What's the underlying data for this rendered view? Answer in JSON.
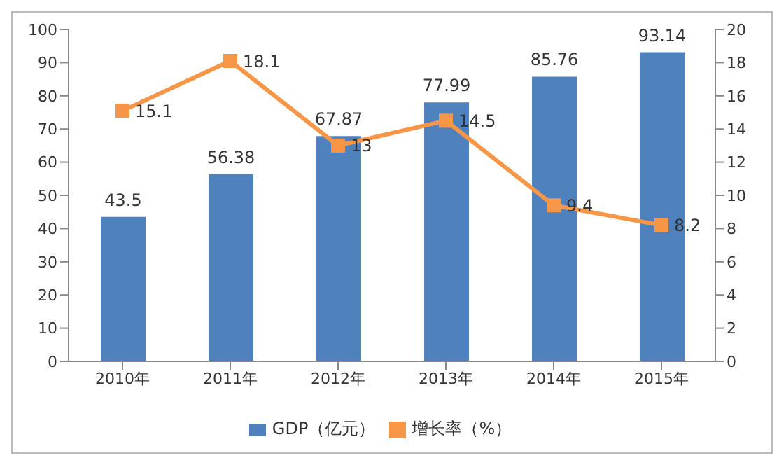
{
  "chart_data": {
    "type": "bar",
    "categories": [
      "2010年",
      "2011年",
      "2012年",
      "2013年",
      "2014年",
      "2015年"
    ],
    "series": [
      {
        "name": "GDP（亿元）",
        "color": "#4f81bd",
        "values": [
          43.5,
          56.38,
          67.87,
          77.99,
          85.76,
          93.14
        ]
      },
      {
        "name": "增长率（%）",
        "type": "line",
        "axis": "y2",
        "color": "#f79646",
        "values": [
          15.1,
          18.1,
          13,
          14.5,
          9.4,
          8.2
        ]
      }
    ],
    "ylim": [
      0,
      100
    ],
    "yticks": [
      0,
      10,
      20,
      30,
      40,
      50,
      60,
      70,
      80,
      90,
      100
    ],
    "y2lim": [
      0,
      20
    ],
    "y2ticks": [
      0,
      2,
      4,
      6,
      8,
      10,
      12,
      14,
      16,
      18,
      20
    ],
    "data_labels": true,
    "legend": "bottom",
    "marker": "square",
    "grid": false
  }
}
